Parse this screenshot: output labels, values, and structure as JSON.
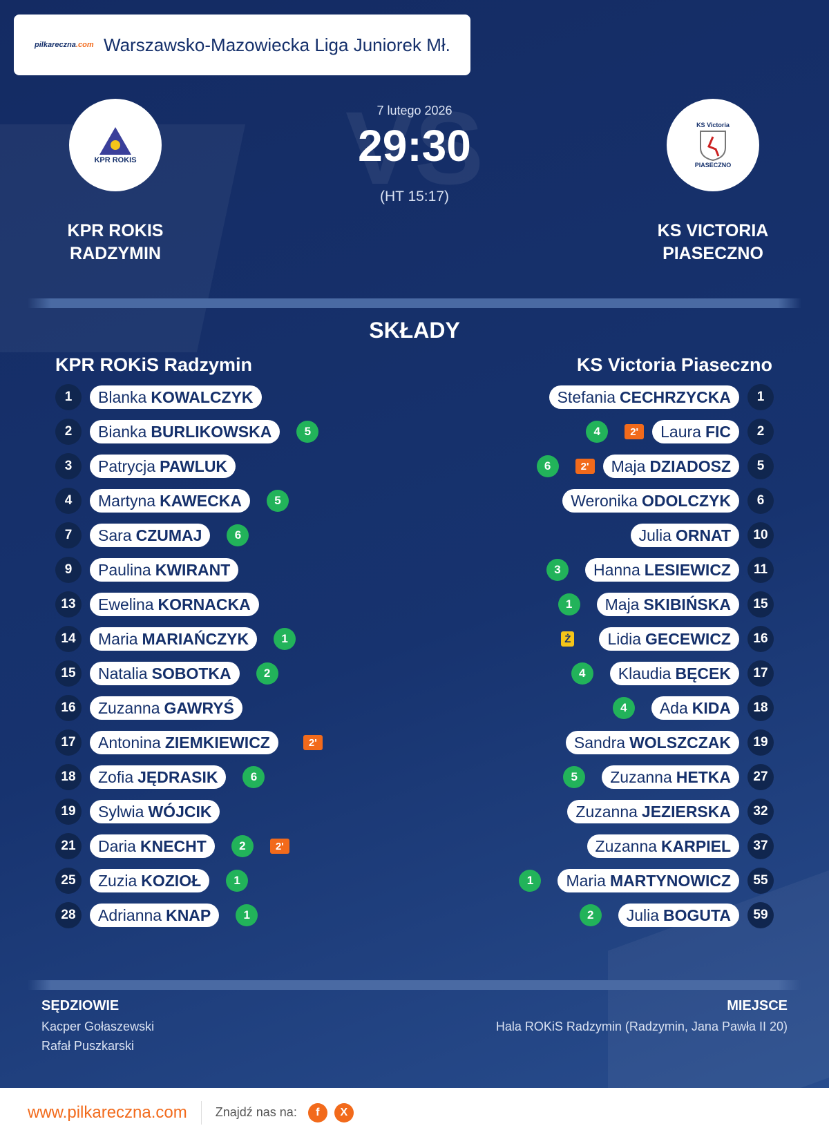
{
  "header": {
    "logo": {
      "name": "pilkareczna",
      "suffix": ".com"
    },
    "league": "Warszawsko-Mazowiecka Liga Juniorek Mł."
  },
  "match": {
    "date": "7 lutego 2026",
    "score": "29:30",
    "halftime": "(HT 15:17)",
    "watermark": "VS",
    "home": {
      "logo_text": "KPR ROKIS",
      "name_lines": [
        "KPR ROKIS",
        "RADZYMIN"
      ]
    },
    "away": {
      "logo_text": [
        "KS Victoria",
        "PIASECZNO"
      ],
      "name_lines": [
        "KS VICTORIA",
        "PIASECZNO"
      ]
    }
  },
  "lineups": {
    "title": "SKŁADY",
    "home": {
      "team": "KPR ROKiS Radzymin",
      "players": [
        {
          "number": 1,
          "first": "Blanka",
          "last": "KOWALCZYK"
        },
        {
          "number": 2,
          "first": "Bianka",
          "last": "BURLIKOWSKA",
          "goals": 5
        },
        {
          "number": 3,
          "first": "Patrycja",
          "last": "PAWLUK"
        },
        {
          "number": 4,
          "first": "Martyna",
          "last": "KAWECKA",
          "goals": 5
        },
        {
          "number": 7,
          "first": "Sara",
          "last": "CZUMAJ",
          "goals": 6
        },
        {
          "number": 9,
          "first": "Paulina",
          "last": "KWIRANT"
        },
        {
          "number": 13,
          "first": "Ewelina",
          "last": "KORNACKA"
        },
        {
          "number": 14,
          "first": "Maria",
          "last": "MARIAŃCZYK",
          "goals": 1
        },
        {
          "number": 15,
          "first": "Natalia",
          "last": "SOBOTKA",
          "goals": 2
        },
        {
          "number": 16,
          "first": "Zuzanna",
          "last": "GAWRYŚ"
        },
        {
          "number": 17,
          "first": "Antonina",
          "last": "ZIEMKIEWICZ",
          "card": "2'"
        },
        {
          "number": 18,
          "first": "Zofia",
          "last": "JĘDRASIK",
          "goals": 6
        },
        {
          "number": 19,
          "first": "Sylwia",
          "last": "WÓJCIK"
        },
        {
          "number": 21,
          "first": "Daria",
          "last": "KNECHT",
          "goals": 2,
          "card": "2'"
        },
        {
          "number": 25,
          "first": "Zuzia",
          "last": "KOZIOŁ",
          "goals": 1
        },
        {
          "number": 28,
          "first": "Adrianna",
          "last": "KNAP",
          "goals": 1
        }
      ]
    },
    "away": {
      "team": "KS Victoria Piaseczno",
      "players": [
        {
          "number": 1,
          "first": "Stefania",
          "last": "CECHRZYCKA"
        },
        {
          "number": 2,
          "first": "Laura",
          "last": "FIC",
          "goals": 4,
          "card": "2'"
        },
        {
          "number": 5,
          "first": "Maja",
          "last": "DZIADOSZ",
          "goals": 6,
          "card": "2'"
        },
        {
          "number": 6,
          "first": "Weronika",
          "last": "ODOLCZYK"
        },
        {
          "number": 10,
          "first": "Julia",
          "last": "ORNAT"
        },
        {
          "number": 11,
          "first": "Hanna",
          "last": "LESIEWICZ",
          "goals": 3
        },
        {
          "number": 15,
          "first": "Maja",
          "last": "SKIBIŃSKA",
          "goals": 1
        },
        {
          "number": 16,
          "first": "Lidia",
          "last": "GECEWICZ",
          "card": "Ż"
        },
        {
          "number": 17,
          "first": "Klaudia",
          "last": "BĘCEK",
          "goals": 4
        },
        {
          "number": 18,
          "first": "Ada",
          "last": "KIDA",
          "goals": 4
        },
        {
          "number": 19,
          "first": "Sandra",
          "last": "WOLSZCZAK"
        },
        {
          "number": 27,
          "first": "Zuzanna",
          "last": "HETKA",
          "goals": 5
        },
        {
          "number": 32,
          "first": "Zuzanna",
          "last": "JEZIERSKA"
        },
        {
          "number": 37,
          "first": "Zuzanna",
          "last": "KARPIEL"
        },
        {
          "number": 55,
          "first": "Maria",
          "last": "MARTYNOWICZ",
          "goals": 1
        },
        {
          "number": 59,
          "first": "Julia",
          "last": "BOGUTA",
          "goals": 2
        }
      ]
    }
  },
  "officials": {
    "title": "SĘDZIOWIE",
    "names": [
      "Kacper Gołaszewski",
      "Rafał Puszkarski"
    ]
  },
  "venue": {
    "title": "MIEJSCE",
    "text": "Hala ROKiS Radzymin (Radzymin, Jana Pawła II 20)"
  },
  "footer": {
    "website": "www.pilkareczna.com",
    "follow": "Znajdź nas na:",
    "socials": [
      "f",
      "X"
    ]
  }
}
